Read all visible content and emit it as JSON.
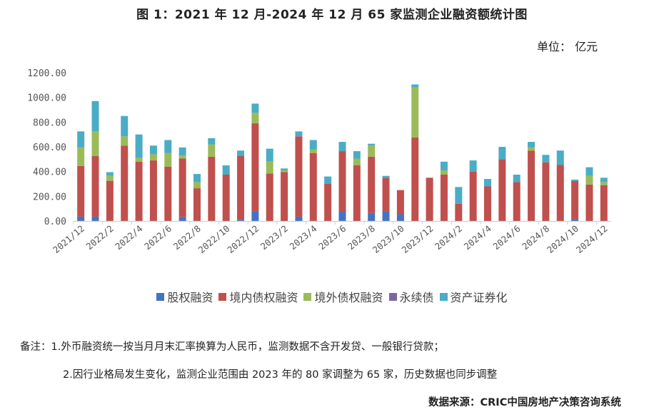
{
  "title": "图 1：2021 年 12 月-2024 年 12 月 65 家监测企业融资额统计图",
  "unit_label": "单位： 亿元",
  "legend": [
    {
      "label": "股权融资",
      "color": "#4472C4"
    },
    {
      "label": "境内债权融资",
      "color": "#C0504D"
    },
    {
      "label": "境外债权融资",
      "color": "#9BBB59"
    },
    {
      "label": "永续债",
      "color": "#8064A2"
    },
    {
      "label": "资产证券化",
      "color": "#4BACC6"
    }
  ],
  "notes": {
    "line1": "备注：1.外币融资统一按当月月末汇率换算为人民币，监测数据不含开发贷、一般银行贷款；",
    "line2": "2.因行业格局发生变化，监测企业范围由 2023 年的 80 家调整为 65 家，历史数据也同步调整",
    "source": "数据来源：CRIC中国房地产决策咨询系统"
  },
  "chart_data": {
    "type": "bar",
    "stacked": true,
    "title": "图 1：2021 年 12 月-2024 年 12 月 65 家监测企业融资额统计图",
    "xlabel": "",
    "ylabel": "单位：亿元",
    "ylim": [
      0,
      1200
    ],
    "yticks": [
      "0.00",
      "200.00",
      "400.00",
      "600.00",
      "800.00",
      "1000.00",
      "1200.00"
    ],
    "grid": false,
    "legend_position": "bottom",
    "xtick_labels": [
      "2021/12",
      "2022/2",
      "2022/4",
      "2022/6",
      "2022/8",
      "2022/10",
      "2022/12",
      "2023/2",
      "2023/4",
      "2023/6",
      "2023/8",
      "2023/10",
      "2023/12",
      "2024/2",
      "2024/4",
      "2024/6",
      "2024/8",
      "2024/10",
      "2024/12"
    ],
    "categories": [
      "2021/12",
      "2022/1",
      "2022/2",
      "2022/3",
      "2022/4",
      "2022/5",
      "2022/6",
      "2022/7",
      "2022/8",
      "2022/9",
      "2022/10",
      "2022/11",
      "2022/12",
      "2023/1",
      "2023/2",
      "2023/3",
      "2023/4",
      "2023/5",
      "2023/6",
      "2023/7",
      "2023/8",
      "2023/9",
      "2023/10",
      "2023/11",
      "2023/12",
      "2024/1",
      "2024/2",
      "2024/3",
      "2024/4",
      "2024/5",
      "2024/6",
      "2024/7",
      "2024/8",
      "2024/9",
      "2024/10",
      "2024/11",
      "2024/12"
    ],
    "series": [
      {
        "name": "股权融资",
        "color": "#4472C4",
        "values": [
          35,
          35,
          0,
          0,
          0,
          0,
          0,
          30,
          0,
          0,
          0,
          10,
          80,
          0,
          0,
          35,
          0,
          0,
          75,
          0,
          65,
          80,
          55,
          0,
          0,
          0,
          0,
          0,
          0,
          0,
          0,
          0,
          0,
          0,
          15,
          0,
          0
        ]
      },
      {
        "name": "境内债权融资",
        "color": "#C0504D",
        "values": [
          410,
          490,
          325,
          610,
          480,
          490,
          440,
          475,
          265,
          520,
          375,
          515,
          710,
          385,
          395,
          650,
          550,
          300,
          490,
          450,
          455,
          270,
          195,
          675,
          350,
          375,
          140,
          400,
          280,
          500,
          315,
          570,
          475,
          455,
          305,
          295,
          290
        ]
      },
      {
        "name": "境外债权融资",
        "color": "#9BBB59",
        "values": [
          150,
          200,
          40,
          75,
          30,
          50,
          110,
          25,
          50,
          100,
          0,
          0,
          85,
          95,
          15,
          0,
          30,
          0,
          0,
          55,
          90,
          0,
          0,
          405,
          0,
          35,
          0,
          0,
          0,
          0,
          0,
          25,
          0,
          0,
          0,
          70,
          25
        ]
      },
      {
        "name": "永续债",
        "color": "#8064A2",
        "values": [
          0,
          0,
          0,
          0,
          0,
          0,
          0,
          0,
          0,
          0,
          0,
          0,
          0,
          0,
          0,
          0,
          0,
          0,
          0,
          0,
          0,
          0,
          0,
          0,
          0,
          0,
          0,
          0,
          0,
          0,
          0,
          0,
          0,
          0,
          5,
          0,
          0
        ]
      },
      {
        "name": "资产证券化",
        "color": "#4BACC6",
        "values": [
          130,
          245,
          30,
          165,
          190,
          70,
          105,
          65,
          65,
          50,
          75,
          45,
          75,
          105,
          15,
          40,
          75,
          60,
          75,
          60,
          15,
          15,
          0,
          25,
          0,
          70,
          135,
          90,
          60,
          100,
          60,
          45,
          60,
          115,
          10,
          70,
          35
        ]
      }
    ]
  }
}
